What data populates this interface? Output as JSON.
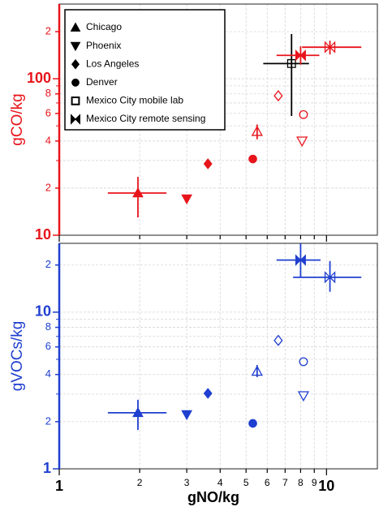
{
  "chart_data": [
    {
      "type": "scatter",
      "y_label": "gCO/kg",
      "color": "#e8141b",
      "log_x": true,
      "log_y": true,
      "grid": true,
      "xlim": [
        1,
        15.5
      ],
      "xticks": [
        1,
        2,
        3,
        4,
        5,
        6,
        7,
        8,
        9,
        10
      ],
      "ylim": [
        10,
        300
      ],
      "yticks": [
        10,
        {
          "value": 20,
          "label": "2"
        },
        {
          "value": 40,
          "label": "4"
        },
        {
          "value": 60,
          "label": "6"
        },
        {
          "value": 80,
          "label": "8"
        },
        100,
        {
          "value": 200,
          "label": "2"
        }
      ],
      "yminor_ticks": [
        30,
        50,
        70,
        90
      ],
      "legend": "upper left",
      "series": [
        {
          "name": "Chicago",
          "marker": "triangle-up",
          "x": [
            1.97,
            5.5
          ],
          "values": [
            18.6,
            46
          ],
          "filled": [
            true,
            false
          ],
          "xerr": [
            [
              1.52,
              2.52
            ],
            null
          ],
          "yerr": [
            [
              13.0,
              23.6
            ],
            [
              41,
              51
            ]
          ]
        },
        {
          "name": "Phoenix",
          "marker": "triangle-down",
          "x": [
            3.0,
            8.1
          ],
          "values": [
            17.1,
            40
          ],
          "filled": [
            true,
            false
          ]
        },
        {
          "name": "Los Angeles",
          "marker": "diamond",
          "x": [
            3.6,
            6.6
          ],
          "values": [
            28.6,
            77.8
          ],
          "filled": [
            true,
            false
          ]
        },
        {
          "name": "Denver",
          "marker": "circle",
          "x": [
            5.3,
            8.2
          ],
          "values": [
            30.7,
            59
          ],
          "filled": [
            true,
            false
          ]
        },
        {
          "name": "Mexico City mobile lab",
          "marker": "square",
          "color": "#000000",
          "x": [
            7.4
          ],
          "values": [
            125
          ],
          "filled": [
            false
          ],
          "xerr": [
            [
              5.8,
              8.6
            ]
          ],
          "yerr": [
            [
              57.8,
              193
            ]
          ]
        },
        {
          "name": "Mexico City remote sensing",
          "marker": "bowtie",
          "x": [
            8.0,
            10.3
          ],
          "values": [
            141,
            159
          ],
          "filled": [
            true,
            false
          ],
          "xerr": [
            [
              6.5,
              9.4
            ],
            [
              8.1,
              13.5
            ]
          ],
          "yerr": [
            [
              123,
              161
            ],
            [
              143,
              175
            ]
          ]
        }
      ]
    },
    {
      "type": "scatter",
      "y_label": "gVOCs/kg",
      "x_label": "gNO/kg",
      "color": "#1f3fd0",
      "log_x": true,
      "log_y": true,
      "grid": true,
      "xlim": [
        1,
        15.5
      ],
      "xticks": [
        1,
        2,
        3,
        4,
        5,
        6,
        7,
        8,
        9,
        10
      ],
      "ylim": [
        1,
        27.5
      ],
      "yticks": [
        1,
        2,
        4,
        6,
        8,
        10,
        {
          "value": 20,
          "label": "2"
        }
      ],
      "yminor_ticks": [
        3,
        5,
        7,
        9
      ],
      "series": [
        {
          "marker": "triangle-up",
          "x": [
            1.97,
            5.5
          ],
          "values": [
            2.28,
            4.19
          ],
          "filled": [
            true,
            false
          ],
          "xerr": [
            [
              1.52,
              2.52
            ],
            null
          ],
          "yerr": [
            [
              1.77,
              2.76
            ],
            [
              3.85,
              4.6
            ]
          ]
        },
        {
          "marker": "triangle-down",
          "x": [
            3.0,
            8.2
          ],
          "values": [
            2.22,
            2.93
          ],
          "filled": [
            true,
            false
          ]
        },
        {
          "marker": "diamond",
          "x": [
            3.6,
            6.6
          ],
          "values": [
            3.03,
            6.6
          ],
          "filled": [
            true,
            false
          ]
        },
        {
          "marker": "circle",
          "x": [
            5.3,
            8.2
          ],
          "values": [
            1.95,
            4.83
          ],
          "filled": [
            true,
            false
          ]
        },
        {
          "marker": "bowtie",
          "x": [
            8.0,
            10.3
          ],
          "values": [
            21.5,
            16.7
          ],
          "filled": [
            true,
            false
          ],
          "xerr": [
            [
              6.5,
              9.5
            ],
            [
              7.5,
              13.5
            ]
          ],
          "yerr": [
            [
              16.7,
              27.5
            ],
            [
              13.5,
              21.2
            ]
          ]
        }
      ]
    }
  ]
}
